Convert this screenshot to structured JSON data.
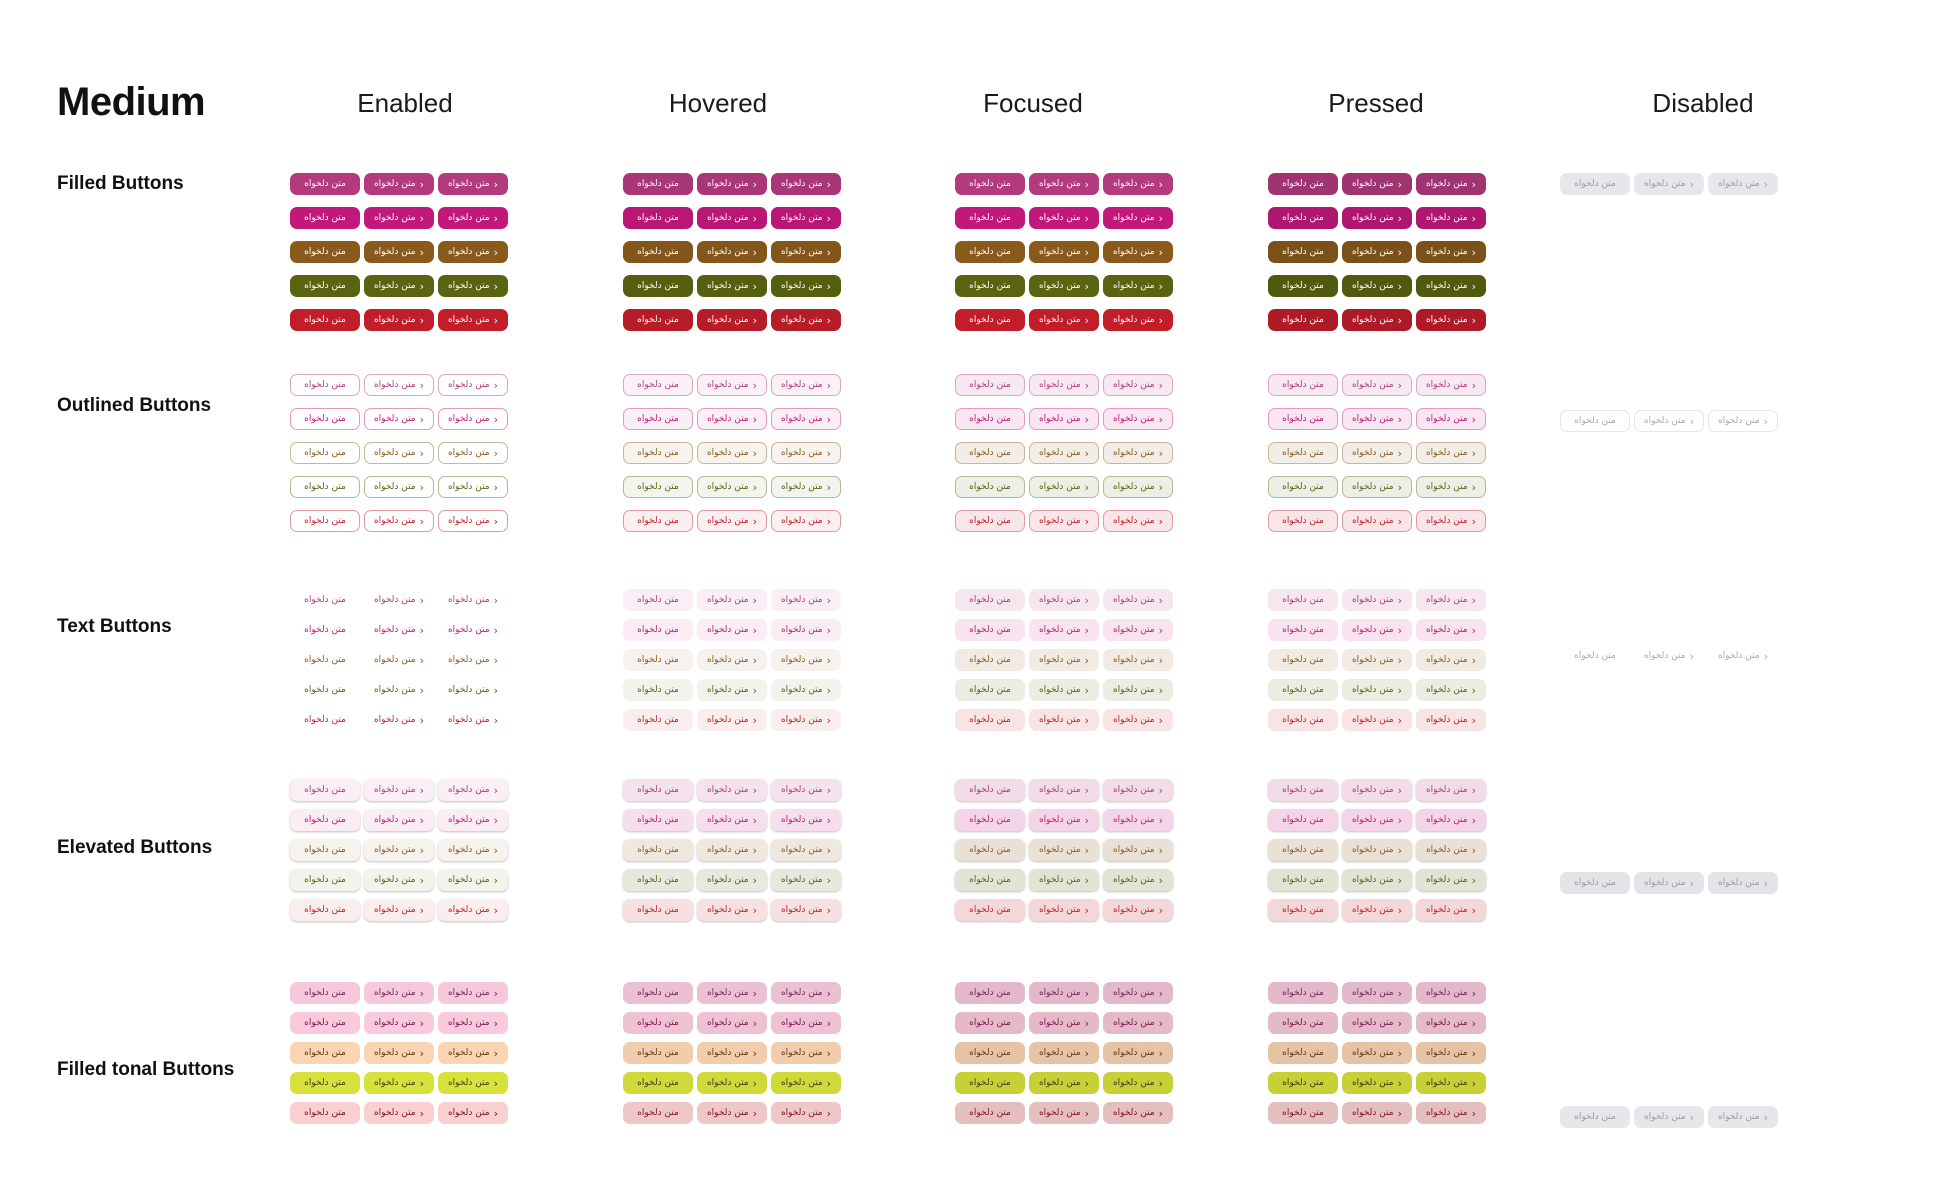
{
  "page": {
    "title": "Medium"
  },
  "states": [
    "Enabled",
    "Hovered",
    "Focused",
    "Pressed",
    "Disabled"
  ],
  "rows": [
    "Filled Buttons",
    "Outlined Buttons",
    "Text Buttons",
    "Elevated Buttons",
    "Filled tonal Buttons"
  ],
  "button": {
    "label": "متن دلخواه",
    "chevron": "›"
  },
  "palette": {
    "accents": [
      "#b23a7d",
      "#c2187b",
      "#8a5a1c",
      "#5a6310",
      "#c11e2a"
    ],
    "tonal": [
      "#f6c8dc",
      "#f8cadb",
      "#fbd4b4",
      "#d8e23c",
      "#f9cfd0"
    ],
    "disabled": "#e6e7ea"
  }
}
